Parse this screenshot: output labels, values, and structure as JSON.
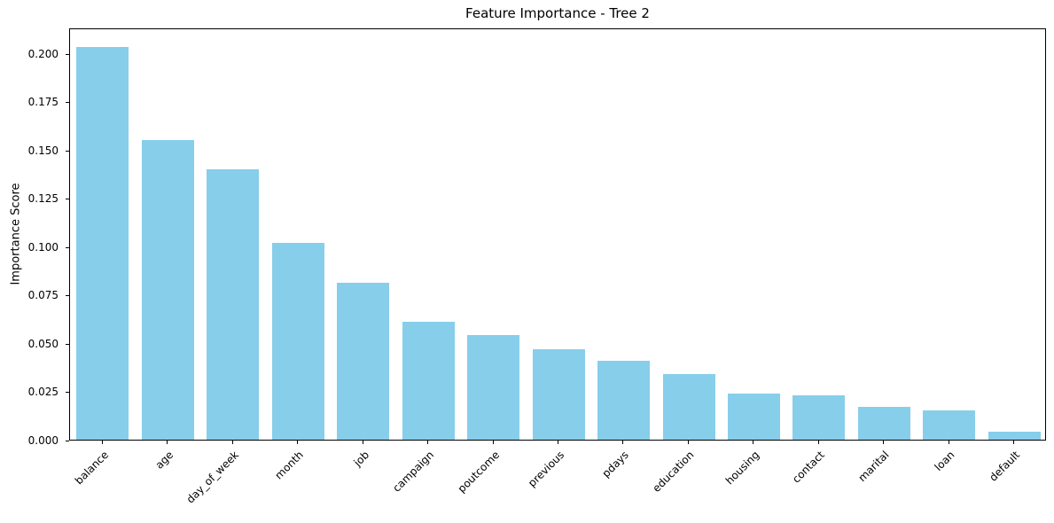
{
  "chart_data": {
    "type": "bar",
    "title": "Feature Importance - Tree 2",
    "xlabel": "",
    "ylabel": "Importance Score",
    "categories": [
      "balance",
      "age",
      "day_of_week",
      "month",
      "job",
      "campaign",
      "poutcome",
      "previous",
      "pdays",
      "education",
      "housing",
      "contact",
      "marital",
      "loan",
      "default"
    ],
    "values": [
      0.203,
      0.155,
      0.14,
      0.102,
      0.081,
      0.061,
      0.054,
      0.047,
      0.041,
      0.034,
      0.024,
      0.023,
      0.017,
      0.015,
      0.004
    ],
    "bar_color": "#87CEEB",
    "axis_color": "#000000",
    "text_color": "#000000",
    "background_color": "#ffffff",
    "ylim": [
      0,
      0.2133
    ],
    "yticks": [
      0.0,
      0.025,
      0.05,
      0.075,
      0.1,
      0.125,
      0.15,
      0.175,
      0.2
    ],
    "ytick_labels": [
      "0.000",
      "0.025",
      "0.050",
      "0.075",
      "0.100",
      "0.125",
      "0.150",
      "0.175",
      "0.200"
    ],
    "xtick_rotation_deg": 45,
    "grid": false,
    "legend": "none",
    "bar_width_fraction": 0.8
  }
}
